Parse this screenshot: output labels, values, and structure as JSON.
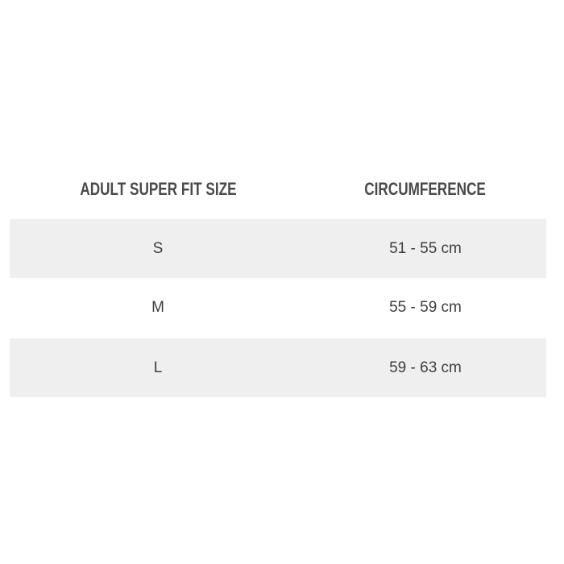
{
  "table": {
    "headers": [
      "ADULT SUPER FIT SIZE",
      "CIRCUMFERENCE"
    ],
    "rows": [
      {
        "size": "S",
        "circumference": "51 - 55 cm"
      },
      {
        "size": "M",
        "circumference": "55 - 59 cm"
      },
      {
        "size": "L",
        "circumference": "59 - 63 cm"
      }
    ],
    "shaded_row_color": "#efefef"
  }
}
